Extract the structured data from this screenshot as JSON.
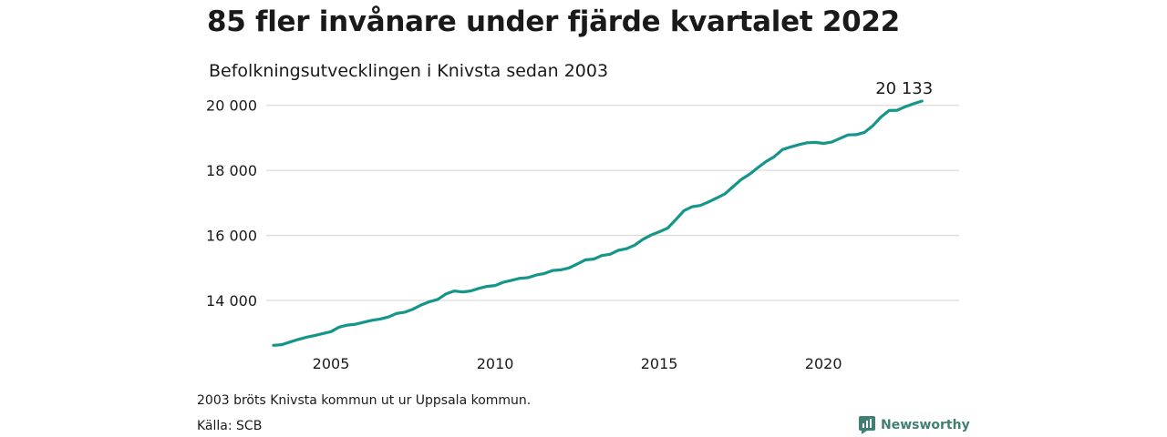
{
  "title": "85 fler invånare under fjärde kvartalet 2022",
  "subtitle": "Befolkningsutvecklingen i Knivsta sedan 2003",
  "note": "2003 bröts Knivsta kommun ut ur Uppsala kommun.",
  "source": "Källa: SCB",
  "brand": {
    "name": "Newsworthy",
    "icon": "newsworthy-logo-icon",
    "color": "#3f7f74"
  },
  "chart_data": {
    "type": "line",
    "color": "#16968a",
    "grid": true,
    "ylim": [
      12600,
      20300
    ],
    "xlim": [
      2003.25,
      2023.3
    ],
    "y_ticks": [
      {
        "value": 14000,
        "label": "14 000"
      },
      {
        "value": 16000,
        "label": "16 000"
      },
      {
        "value": 18000,
        "label": "18 000"
      },
      {
        "value": 20000,
        "label": "20 000"
      }
    ],
    "x_ticks": [
      {
        "value": 2005,
        "label": "2005"
      },
      {
        "value": 2010,
        "label": "2010"
      },
      {
        "value": 2015,
        "label": "2015"
      },
      {
        "value": 2020,
        "label": "2020"
      }
    ],
    "end_label": "20 133",
    "series": [
      {
        "x": [
          2003.25,
          2003.5,
          2003.75,
          2004.0,
          2004.25,
          2004.5,
          2004.75,
          2005.0,
          2005.25,
          2005.5,
          2005.75,
          2006.0,
          2006.25,
          2006.5,
          2006.75,
          2007.0,
          2007.25,
          2007.5,
          2007.75,
          2008.0,
          2008.25,
          2008.5,
          2008.75,
          2009.0,
          2009.25,
          2009.5,
          2009.75,
          2010.0,
          2010.25,
          2010.5,
          2010.75,
          2011.0,
          2011.25,
          2011.5,
          2011.75,
          2012.0,
          2012.25,
          2012.5,
          2012.75,
          2013.0,
          2013.25,
          2013.5,
          2013.75,
          2014.0,
          2014.25,
          2014.5,
          2014.75,
          2015.0,
          2015.25,
          2015.5,
          2015.75,
          2016.0,
          2016.25,
          2016.5,
          2016.75,
          2017.0,
          2017.25,
          2017.5,
          2017.75,
          2018.0,
          2018.25,
          2018.5,
          2018.75,
          2019.0,
          2019.25,
          2019.5,
          2019.75,
          2020.0,
          2020.25,
          2020.5,
          2020.75,
          2021.0,
          2021.25,
          2021.5,
          2021.75,
          2022.0,
          2022.25,
          2022.5,
          2022.75,
          2023.0
        ],
        "values": [
          12620,
          12640,
          12720,
          12800,
          12870,
          12920,
          12980,
          13040,
          13180,
          13240,
          13270,
          13330,
          13390,
          13430,
          13490,
          13600,
          13640,
          13730,
          13860,
          13960,
          14030,
          14200,
          14290,
          14260,
          14290,
          14370,
          14430,
          14460,
          14560,
          14620,
          14680,
          14700,
          14780,
          14830,
          14920,
          14940,
          15000,
          15120,
          15250,
          15270,
          15380,
          15420,
          15540,
          15590,
          15700,
          15880,
          16010,
          16110,
          16220,
          16480,
          16760,
          16880,
          16920,
          17030,
          17150,
          17280,
          17500,
          17720,
          17880,
          18080,
          18270,
          18420,
          18640,
          18720,
          18790,
          18850,
          18860,
          18830,
          18870,
          18980,
          19090,
          19100,
          19170,
          19370,
          19640,
          19840,
          19850,
          19960,
          20050,
          20133
        ]
      }
    ]
  }
}
